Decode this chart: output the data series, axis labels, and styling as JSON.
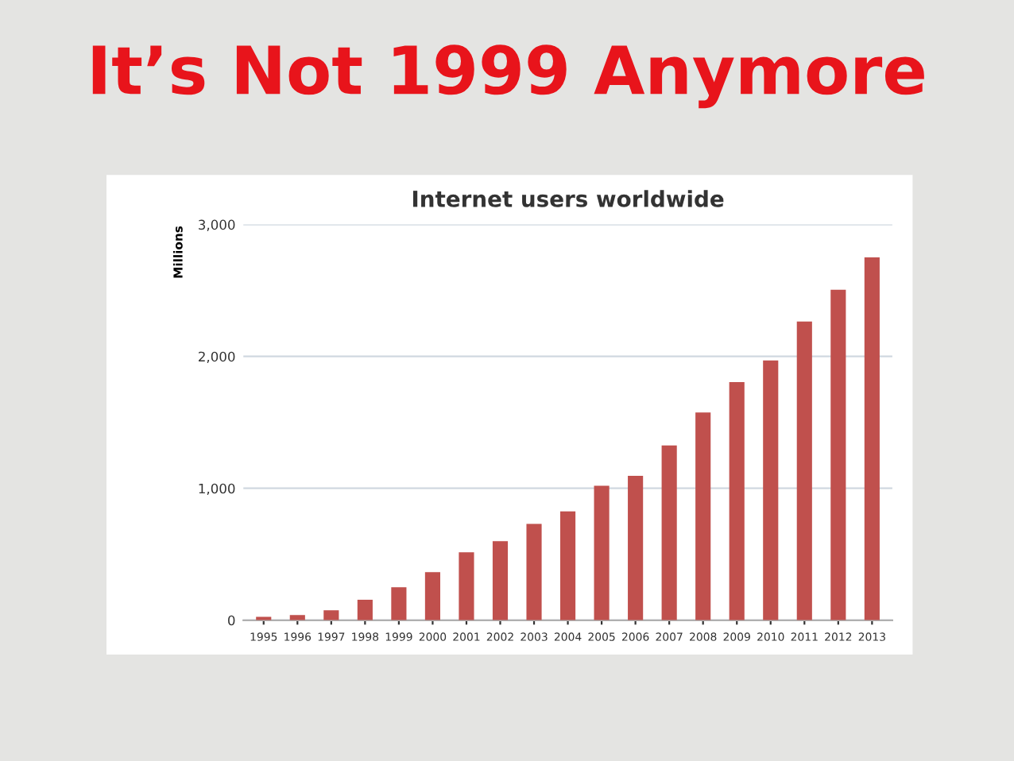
{
  "chart_data": {
    "type": "bar",
    "title": "Internet users worldwide",
    "subtitle": "It’s Not 1999 Anymore",
    "ylabel": "Millions",
    "categories": [
      "1995",
      "1996",
      "1997",
      "1998",
      "1999",
      "2000",
      "2001",
      "2002",
      "2003",
      "2004",
      "2005",
      "2006",
      "2007",
      "2008",
      "2009",
      "2010",
      "2011",
      "2012",
      "2013"
    ],
    "values": [
      25,
      40,
      75,
      155,
      250,
      365,
      515,
      600,
      730,
      825,
      1020,
      1095,
      1325,
      1575,
      1805,
      1970,
      2265,
      2505,
      2750
    ],
    "color": "#c0504d",
    "ylim": [
      0,
      3000
    ],
    "yticks": [
      {
        "value": 0,
        "label": "0"
      },
      {
        "value": 1000,
        "label": "1,000"
      },
      {
        "value": 2000,
        "label": "2,000"
      },
      {
        "value": 3000,
        "label": "3,000"
      }
    ],
    "grid": "y"
  }
}
